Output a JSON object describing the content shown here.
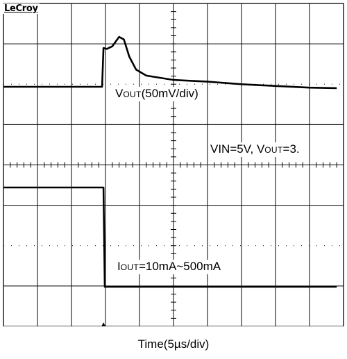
{
  "chart_data": {
    "type": "line",
    "brand": "LeCroy",
    "xlabel": "Time(5µs/div)",
    "annotations": {
      "vout": {
        "main": "V",
        "sub": "OUT",
        "rest": "(50mV/div)"
      },
      "cond": {
        "pre": "VIN=5V, V",
        "sub": "OUT",
        "rest": "=3."
      },
      "iout": {
        "main": "I",
        "sub": "OUT",
        "rest": "=10mA~500mA"
      }
    },
    "grid": {
      "x_divisions": 10,
      "y_divisions": 8,
      "time_per_div_us": 5
    },
    "series": [
      {
        "channel": "vout",
        "unit": "mV",
        "points": [
          [
            0,
            0
          ],
          [
            14.5,
            0
          ],
          [
            14.7,
            45
          ],
          [
            15.2,
            44
          ],
          [
            16,
            47
          ],
          [
            17,
            58
          ],
          [
            17.7,
            55
          ],
          [
            18.5,
            35
          ],
          [
            19.5,
            20
          ],
          [
            21,
            13
          ],
          [
            25,
            8
          ],
          [
            30,
            6
          ],
          [
            35,
            3
          ],
          [
            40,
            1
          ],
          [
            45,
            -1
          ],
          [
            49,
            -1.5
          ]
        ]
      },
      {
        "channel": "iout",
        "unit": "mA",
        "points": [
          [
            0,
            500
          ],
          [
            14.7,
            500
          ],
          [
            14.9,
            10
          ],
          [
            49,
            10
          ]
        ]
      }
    ]
  },
  "trigger_marker": "▲"
}
